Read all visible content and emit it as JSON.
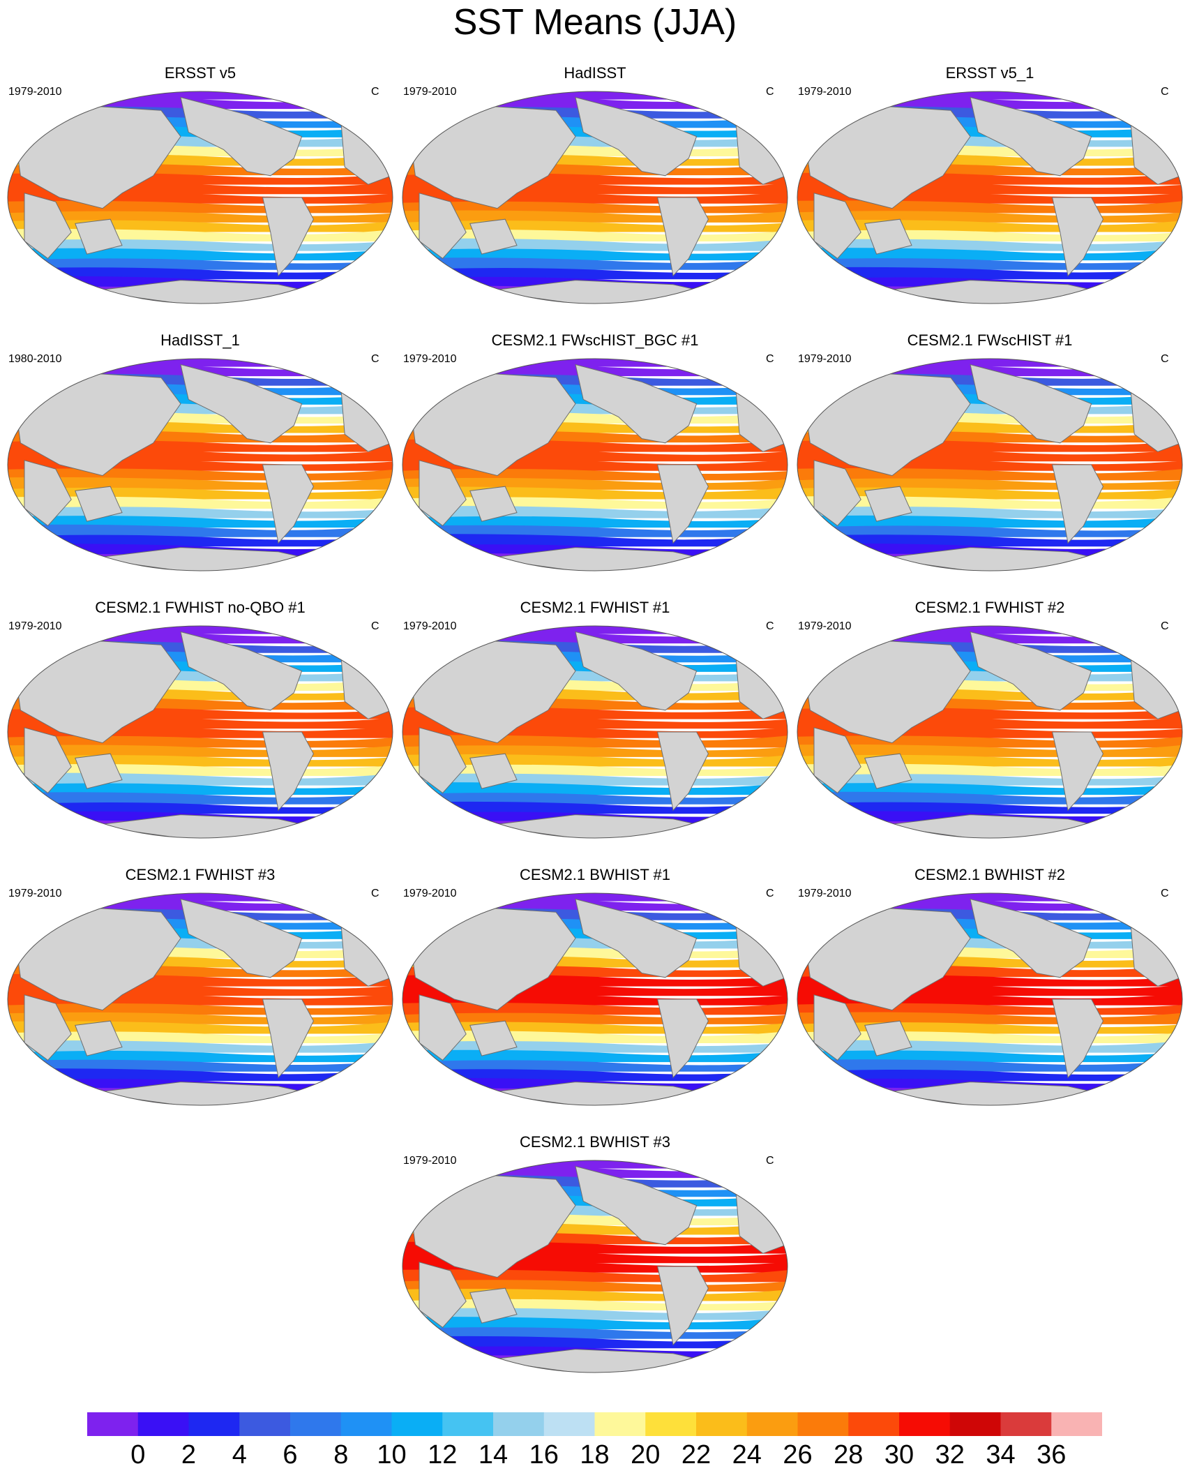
{
  "title": "SST Means (JJA)",
  "units": "C",
  "map_style": {
    "projection": "robinson-like global ellipse",
    "land_color": "#d3d3d3",
    "coast_color": "#6e6e6e"
  },
  "panels": [
    {
      "title": "ERSST v5",
      "period": "1979-2010",
      "units": "C"
    },
    {
      "title": "HadISST",
      "period": "1979-2010",
      "units": "C"
    },
    {
      "title": "ERSST v5_1",
      "period": "1979-2010",
      "units": "C"
    },
    {
      "title": "HadISST_1",
      "period": "1980-2010",
      "units": "C"
    },
    {
      "title": "CESM2.1 FWscHIST_BGC #1",
      "period": "1979-2010",
      "units": "C"
    },
    {
      "title": "CESM2.1 FWscHIST #1",
      "period": "1979-2010",
      "units": "C"
    },
    {
      "title": "CESM2.1 FWHIST no-QBO #1",
      "period": "1979-2010",
      "units": "C"
    },
    {
      "title": "CESM2.1 FWHIST #1",
      "period": "1979-2010",
      "units": "C"
    },
    {
      "title": "CESM2.1 FWHIST #2",
      "period": "1979-2010",
      "units": "C"
    },
    {
      "title": "CESM2.1 FWHIST #3",
      "period": "1979-2010",
      "units": "C"
    },
    {
      "title": "CESM2.1 BWHIST #1",
      "period": "1979-2010",
      "units": "C"
    },
    {
      "title": "CESM2.1 BWHIST #2",
      "period": "1979-2010",
      "units": "C"
    },
    {
      "title": "CESM2.1 BWHIST #3",
      "period": "1979-2010",
      "units": "C"
    }
  ],
  "colorbar": {
    "colors": [
      "#7e22ee",
      "#3a10f5",
      "#1e28f2",
      "#3c5ae0",
      "#2f78ec",
      "#1f91f5",
      "#0aaef5",
      "#45c3f2",
      "#94d0ec",
      "#bde0f3",
      "#fef89a",
      "#fee03a",
      "#fbbd1a",
      "#fb9d10",
      "#fb7b0a",
      "#fc4a0a",
      "#f60c04",
      "#cf0606",
      "#da3b3b",
      "#f9b3b3"
    ],
    "labels": [
      "0",
      "2",
      "4",
      "6",
      "8",
      "10",
      "12",
      "14",
      "16",
      "18",
      "20",
      "22",
      "24",
      "26",
      "28",
      "30",
      "32",
      "34",
      "36"
    ]
  }
}
